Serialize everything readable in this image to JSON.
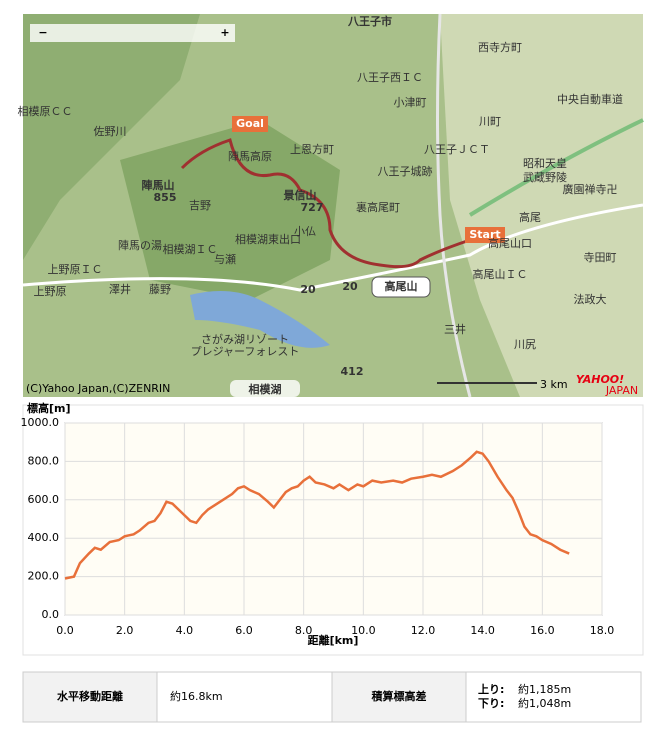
{
  "map": {
    "zoom_out": "−",
    "zoom_in": "+",
    "copyright": "(C)Yahoo Japan,(C)ZENRIN",
    "scale": "3 km",
    "logo": "YAHOO!",
    "logo_sub": "JAPAN",
    "goal": "Goal",
    "start": "Start",
    "labels": [
      "八王子市",
      "西寺方町",
      "八王子西ＩＣ",
      "小津町",
      "川町",
      "中央自動車道",
      "相模原ＣＣ",
      "佐野川",
      "陣馬高原",
      "上恩方町",
      "八王子城跡",
      "八王子ＪＣＴ",
      "昭和天皇",
      "武蔵野陵",
      "廣園禅寺卍",
      "高尾",
      "陣馬山",
      "855",
      "吉野",
      "景信山",
      "727",
      "裏高尾町",
      "相模湖ＩＣ",
      "相模湖東出口",
      "与瀬",
      "小仏",
      "陣馬の湯",
      "上野原ＩＣ",
      "上野原",
      "澤井",
      "藤野",
      "高尾山",
      "高尾山口",
      "高尾山ＩＣ",
      "寺田町",
      "法政大",
      "さがみ湖リゾート",
      "プレジャーフォレスト",
      "三井",
      "川尻",
      "相模湖",
      "20",
      "20",
      "412"
    ]
  },
  "chart_data": {
    "type": "line",
    "y_label": "標高[m]",
    "x_label": "距離[km]",
    "x": [
      0,
      0.3,
      0.5,
      0.8,
      1.0,
      1.2,
      1.5,
      1.8,
      2.0,
      2.3,
      2.5,
      2.8,
      3.0,
      3.2,
      3.4,
      3.6,
      3.8,
      4.0,
      4.2,
      4.4,
      4.6,
      4.8,
      5.0,
      5.3,
      5.6,
      5.8,
      6.0,
      6.2,
      6.5,
      6.8,
      7.0,
      7.2,
      7.4,
      7.6,
      7.8,
      8.0,
      8.2,
      8.4,
      8.7,
      9.0,
      9.2,
      9.5,
      9.8,
      10.0,
      10.3,
      10.6,
      11.0,
      11.3,
      11.6,
      12.0,
      12.3,
      12.6,
      13.0,
      13.3,
      13.6,
      13.8,
      14.0,
      14.2,
      14.5,
      14.8,
      15.0,
      15.2,
      15.4,
      15.6,
      15.8,
      16.0,
      16.3,
      16.6,
      16.9
    ],
    "series": [
      {
        "name": "標高",
        "color": "#e8703a",
        "values": [
          190,
          200,
          270,
          320,
          350,
          340,
          380,
          390,
          410,
          420,
          440,
          480,
          490,
          530,
          590,
          580,
          550,
          520,
          490,
          480,
          520,
          550,
          570,
          600,
          630,
          660,
          670,
          650,
          630,
          590,
          560,
          600,
          640,
          660,
          670,
          700,
          720,
          690,
          680,
          660,
          680,
          650,
          680,
          670,
          700,
          690,
          700,
          690,
          710,
          720,
          730,
          720,
          750,
          780,
          820,
          850,
          840,
          800,
          720,
          650,
          610,
          540,
          460,
          420,
          410,
          390,
          370,
          340,
          320
        ]
      }
    ],
    "xlim": [
      0,
      18
    ],
    "ylim": [
      0,
      1000
    ],
    "xticks": [
      {
        "value": 0,
        "label": "0.0"
      },
      {
        "value": 2,
        "label": "2.0"
      },
      {
        "value": 4,
        "label": "4.0"
      },
      {
        "value": 6,
        "label": "6.0"
      },
      {
        "value": 8,
        "label": "8.0"
      },
      {
        "value": 10,
        "label": "10.0"
      },
      {
        "value": 12,
        "label": "12.0"
      },
      {
        "value": 14,
        "label": "14.0"
      },
      {
        "value": 16,
        "label": "16.0"
      },
      {
        "value": 18,
        "label": "18.0"
      }
    ],
    "yticks": [
      {
        "value": 0,
        "label": "0.0"
      },
      {
        "value": 200,
        "label": "200.0"
      },
      {
        "value": 400,
        "label": "400.0"
      },
      {
        "value": 600,
        "label": "600.0"
      },
      {
        "value": 800,
        "label": "800.0"
      },
      {
        "value": 1000,
        "label": "1000.0"
      }
    ],
    "grid": true
  },
  "table": {
    "distance_label": "水平移動距離",
    "distance": "約16.8km",
    "elevation_label": "積算標高差",
    "up_label": "上り:",
    "up": "約1,185m",
    "down_label": "下り:",
    "down": "約1,048m"
  }
}
